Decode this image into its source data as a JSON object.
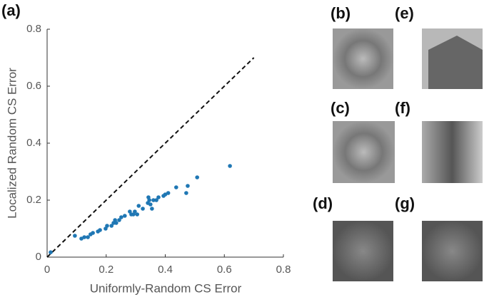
{
  "chart_data": {
    "type": "scatter",
    "panel_label": "(a)",
    "xlabel": "Uniformly-Random CS Error",
    "ylabel": "Localized Random CS Error",
    "xlim": [
      0,
      0.8
    ],
    "ylim": [
      0,
      0.8
    ],
    "xticks": [
      0,
      0.2,
      0.4,
      0.6,
      0.8
    ],
    "yticks": [
      0,
      0.2,
      0.4,
      0.6,
      0.8
    ],
    "color": "#1f77b4",
    "reference_line": {
      "x": [
        0,
        0.7
      ],
      "y": [
        0,
        0.7
      ]
    },
    "x": [
      0.012,
      0.094,
      0.116,
      0.126,
      0.138,
      0.147,
      0.155,
      0.172,
      0.179,
      0.198,
      0.203,
      0.218,
      0.225,
      0.23,
      0.234,
      0.244,
      0.251,
      0.263,
      0.28,
      0.285,
      0.292,
      0.297,
      0.305,
      0.31,
      0.324,
      0.341,
      0.343,
      0.346,
      0.35,
      0.355,
      0.36,
      0.37,
      0.377,
      0.394,
      0.4,
      0.41,
      0.437,
      0.471,
      0.476,
      0.508,
      0.619
    ],
    "y": [
      0.017,
      0.075,
      0.065,
      0.07,
      0.07,
      0.08,
      0.085,
      0.09,
      0.095,
      0.1,
      0.11,
      0.11,
      0.12,
      0.13,
      0.12,
      0.13,
      0.14,
      0.145,
      0.16,
      0.15,
      0.15,
      0.16,
      0.15,
      0.18,
      0.17,
      0.19,
      0.21,
      0.2,
      0.185,
      0.17,
      0.2,
      0.2,
      0.21,
      0.215,
      0.22,
      0.225,
      0.245,
      0.225,
      0.25,
      0.28,
      0.32
    ]
  },
  "panels": [
    "(b)",
    "(e)",
    "(c)",
    "(f)",
    "(d)",
    "(g)"
  ]
}
